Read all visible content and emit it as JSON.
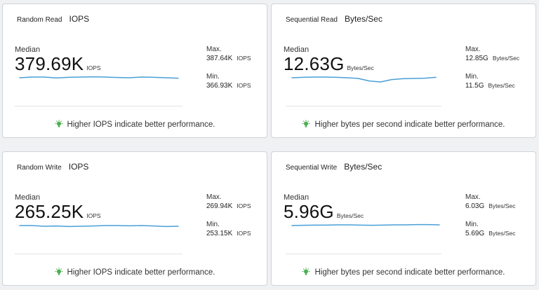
{
  "cards": [
    {
      "name": "Random Read",
      "unit": "IOPS",
      "median_label": "Median",
      "median": "379.69K",
      "median_unit": "IOPS",
      "max_label": "Max.",
      "max": "387.64K",
      "max_unit": "IOPS",
      "min_label": "Min.",
      "min": "366.93K",
      "min_unit": "IOPS",
      "hint": "Higher IOPS indicate better performance.",
      "trend": [
        0.55,
        0.5,
        0.5,
        0.56,
        0.52,
        0.5,
        0.48,
        0.5,
        0.53,
        0.55,
        0.5,
        0.52,
        0.55,
        0.58
      ]
    },
    {
      "name": "Sequential Read",
      "unit": "Bytes/Sec",
      "median_label": "Median",
      "median": "12.63G",
      "median_unit": "Bytes/Sec",
      "max_label": "Max.",
      "max": "12.85G",
      "max_unit": "Bytes/Sec",
      "min_label": "Min.",
      "min": "11.5G",
      "min_unit": "Bytes/Sec",
      "hint": "Higher bytes per second indicate better performance.",
      "trend": [
        0.55,
        0.52,
        0.5,
        0.5,
        0.52,
        0.55,
        0.6,
        0.78,
        0.85,
        0.68,
        0.62,
        0.6,
        0.58,
        0.52
      ]
    },
    {
      "name": "Random Write",
      "unit": "IOPS",
      "median_label": "Median",
      "median": "265.25K",
      "median_unit": "IOPS",
      "max_label": "Max.",
      "max": "269.94K",
      "max_unit": "IOPS",
      "min_label": "Min.",
      "min": "253.15K",
      "min_unit": "IOPS",
      "hint": "Higher IOPS indicate better performance.",
      "trend": [
        0.55,
        0.55,
        0.6,
        0.58,
        0.62,
        0.6,
        0.58,
        0.55,
        0.55,
        0.57,
        0.55,
        0.58,
        0.62,
        0.6
      ]
    },
    {
      "name": "Sequential Write",
      "unit": "Bytes/Sec",
      "median_label": "Median",
      "median": "5.96G",
      "median_unit": "Bytes/Sec",
      "max_label": "Max.",
      "max": "6.03G",
      "max_unit": "Bytes/Sec",
      "min_label": "Min.",
      "min": "5.69G",
      "min_unit": "Bytes/Sec",
      "hint": "Higher bytes per second indicate better performance.",
      "trend": [
        0.55,
        0.53,
        0.52,
        0.52,
        0.5,
        0.5,
        0.52,
        0.53,
        0.52,
        0.5,
        0.5,
        0.48,
        0.48,
        0.5
      ]
    }
  ],
  "colors": {
    "line": "#4a9fd8",
    "hint_icon": "#4caf50",
    "card_border": "#cfd3d8"
  },
  "icons": {
    "hint": "lightbulb-icon"
  }
}
